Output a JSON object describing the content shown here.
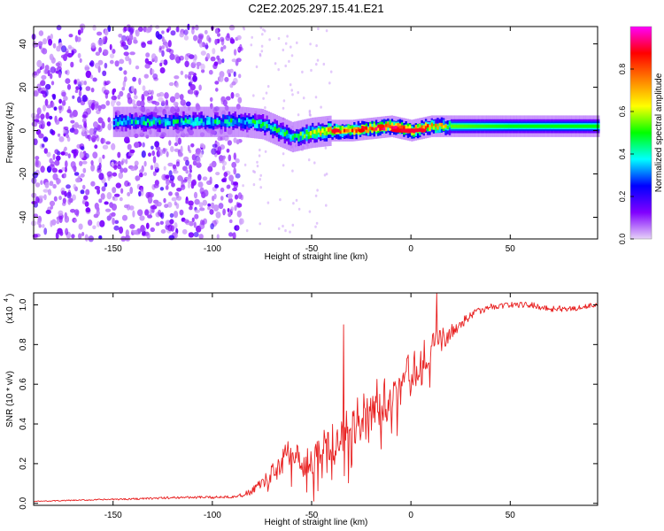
{
  "title": "C2E2.2025.297.15.41.E21",
  "chart_data": [
    {
      "type": "heatmap",
      "name": "spectrogram",
      "xlabel": "Height of straight line (km)",
      "ylabel": "Frequency (Hz)",
      "xlim": [
        -190,
        94
      ],
      "ylim": [
        -50,
        48
      ],
      "x_ticks": [
        -150,
        -100,
        -50,
        0,
        50
      ],
      "y_ticks": [
        -40,
        -20,
        0,
        20,
        40
      ],
      "colorbar": {
        "label": "Normalized spectral amplitude",
        "range": [
          0,
          1
        ],
        "ticks": [
          0.0,
          0.2,
          0.4,
          0.6,
          0.8
        ],
        "tick_labels": [
          "0.0",
          "0.2",
          "0.4",
          "0.6",
          "0.8"
        ],
        "colors": [
          "#e6d3f7",
          "#8000ff",
          "#0000ff",
          "#00ffff",
          "#00ff00",
          "#ffff00",
          "#ff8000",
          "#ff0000",
          "#ff00ff"
        ]
      },
      "band": {
        "center_hz": [
          [
            -150,
            4
          ],
          [
            -130,
            4
          ],
          [
            -120,
            4
          ],
          [
            -100,
            4
          ],
          [
            -85,
            4
          ],
          [
            -75,
            3
          ],
          [
            -70,
            1
          ],
          [
            -60,
            -3
          ],
          [
            -50,
            -1
          ],
          [
            -40,
            0
          ],
          [
            -30,
            0
          ],
          [
            -20,
            1
          ],
          [
            -10,
            2
          ],
          [
            0,
            0
          ],
          [
            10,
            2
          ],
          [
            30,
            2
          ],
          [
            50,
            2
          ],
          [
            70,
            2
          ],
          [
            94,
            2
          ]
        ],
        "peak_amplitude": [
          [
            -150,
            0.3
          ],
          [
            -100,
            0.35
          ],
          [
            -80,
            0.35
          ],
          [
            -60,
            0.4
          ],
          [
            -40,
            0.7
          ],
          [
            -20,
            0.8
          ],
          [
            0,
            0.85
          ],
          [
            20,
            0.5
          ],
          [
            50,
            0.45
          ],
          [
            94,
            0.45
          ]
        ]
      },
      "noise_region_km": [
        -190,
        -85
      ]
    },
    {
      "type": "line",
      "name": "snr",
      "xlabel": "Height of straight line (km)",
      "ylabel": "SNR (10 * v/v)",
      "scale_label": "(x10",
      "scale_exponent": "4",
      "xlim": [
        -190,
        94
      ],
      "ylim": [
        -0.01,
        1.06
      ],
      "x_ticks": [
        -150,
        -100,
        -50,
        0,
        50
      ],
      "y_ticks": [
        0.0,
        0.2,
        0.4,
        0.6,
        0.8,
        1.0
      ],
      "y_tick_labels": [
        "0.0",
        "0.2",
        "0.4",
        "0.6",
        "0.8",
        "1.0"
      ],
      "series": [
        {
          "name": "SNR",
          "color": "#e82020",
          "x": [
            -190,
            -170,
            -150,
            -130,
            -115,
            -100,
            -90,
            -85,
            -80,
            -75,
            -70,
            -65,
            -60,
            -57,
            -55,
            -50,
            -45,
            -40,
            -35,
            -30,
            -25,
            -20,
            -15,
            -10,
            -5,
            0,
            5,
            10,
            15,
            20,
            25,
            30,
            40,
            50,
            60,
            70,
            80,
            94
          ],
          "y": [
            0.01,
            0.015,
            0.02,
            0.025,
            0.03,
            0.03,
            0.035,
            0.04,
            0.06,
            0.1,
            0.15,
            0.2,
            0.26,
            0.22,
            0.18,
            0.22,
            0.27,
            0.3,
            0.34,
            0.38,
            0.43,
            0.48,
            0.52,
            0.55,
            0.6,
            0.65,
            0.72,
            0.78,
            0.82,
            0.86,
            0.9,
            0.95,
            0.99,
            1.0,
            1.0,
            0.98,
            0.98,
            1.0
          ],
          "noise": [
            0.002,
            0.003,
            0.004,
            0.005,
            0.006,
            0.006,
            0.008,
            0.01,
            0.02,
            0.03,
            0.05,
            0.07,
            0.09,
            0.09,
            0.08,
            0.09,
            0.1,
            0.11,
            0.12,
            0.13,
            0.13,
            0.13,
            0.13,
            0.12,
            0.12,
            0.11,
            0.1,
            0.08,
            0.06,
            0.04,
            0.03,
            0.02,
            0.015,
            0.015,
            0.015,
            0.015,
            0.015,
            0.015
          ]
        }
      ],
      "annotations": [
        {
          "x": -34,
          "y": 0.9
        },
        {
          "x": 13,
          "y": 1.06
        }
      ]
    }
  ]
}
